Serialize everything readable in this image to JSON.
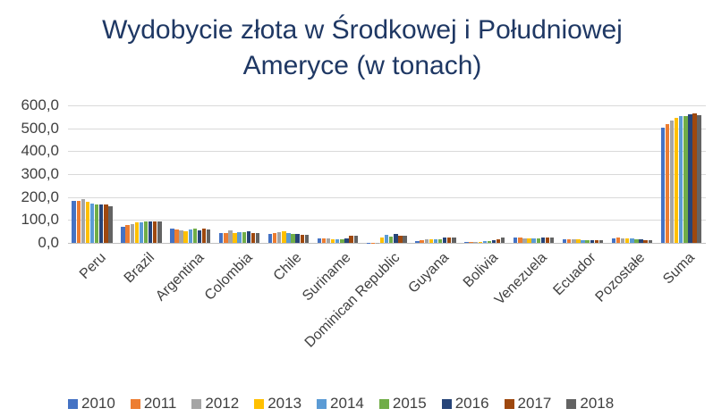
{
  "chart_data": {
    "type": "bar",
    "title": "Wydobycie złota w Środkowej i Południowej Ameryce (w tonach)",
    "title_lines": [
      "Wydobycie złota w Środkowej i Południowej",
      "Ameryce (w tonach)"
    ],
    "xlabel": "",
    "ylabel": "",
    "ylim": [
      0,
      600
    ],
    "yticks": [
      "0,0",
      "100,0",
      "200,0",
      "300,0",
      "400,0",
      "500,0",
      "600,0"
    ],
    "grid": true,
    "legend_position": "bottom",
    "categories": [
      "Peru",
      "Brazil",
      "Argentina",
      "Colombia",
      "Chile",
      "Suriname",
      "Dominican Republic",
      "Guyana",
      "Bolivia",
      "Venezuela",
      "Ecuador",
      "Pozostałe",
      "Suma"
    ],
    "series": [
      {
        "name": "2010",
        "color": "#4472C4",
        "values": [
          184,
          70,
          63,
          43,
          38,
          19,
          0.5,
          9,
          3,
          23,
          14,
          20,
          501
        ]
      },
      {
        "name": "2011",
        "color": "#ED7D31",
        "values": [
          184,
          78,
          59,
          44,
          43,
          19,
          0.5,
          12,
          3,
          23,
          14,
          23,
          517
        ]
      },
      {
        "name": "2012",
        "color": "#A5A5A5",
        "values": [
          189,
          80,
          54,
          55,
          48,
          19,
          1,
          14,
          3,
          21,
          14,
          20,
          532
        ]
      },
      {
        "name": "2013",
        "color": "#FFC000",
        "values": [
          181,
          89,
          50,
          44,
          49,
          17,
          25,
          16,
          3,
          21,
          14,
          21,
          546
        ]
      },
      {
        "name": "2014",
        "color": "#5B9BD5",
        "values": [
          172,
          90,
          58,
          47,
          43,
          17,
          35,
          16,
          6,
          21,
          13,
          20,
          552
        ]
      },
      {
        "name": "2015",
        "color": "#70AD47",
        "values": [
          169,
          95,
          63,
          47,
          40,
          17,
          29,
          16,
          8,
          21,
          12,
          17,
          552
        ]
      },
      {
        "name": "2016",
        "color": "#264478",
        "values": [
          166,
          95,
          56,
          51,
          38,
          21,
          38,
          23,
          13,
          23,
          12,
          17,
          561
        ]
      },
      {
        "name": "2017",
        "color": "#9E480E",
        "values": [
          166,
          95,
          63,
          42,
          35,
          32,
          33,
          23,
          17,
          23,
          12,
          13,
          565
        ]
      },
      {
        "name": "2018",
        "color": "#636363",
        "values": [
          158,
          95,
          59,
          42,
          34,
          32,
          30,
          23,
          23,
          23,
          10,
          12,
          556
        ]
      }
    ]
  }
}
